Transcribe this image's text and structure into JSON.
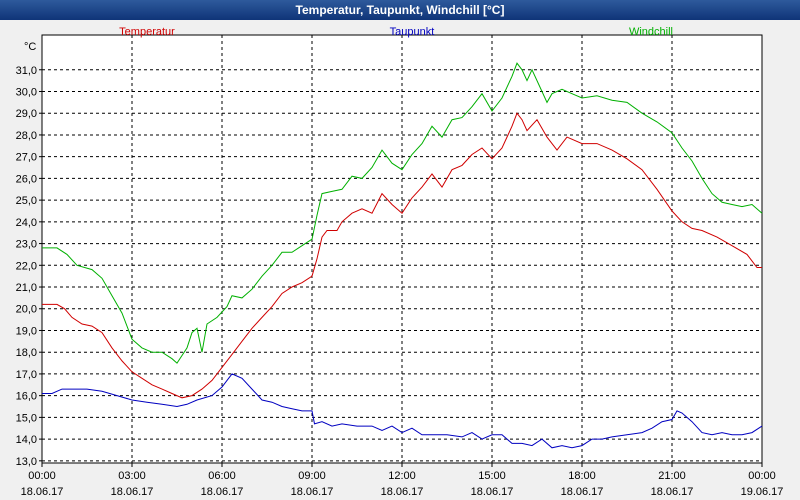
{
  "window": {
    "title": "Temperatur, Taupunkt, Windchill [°C]"
  },
  "colors": {
    "background": "#f0f0f0",
    "plot_background": "#ffffff",
    "grid": "#000000",
    "temperatur": "#d00000",
    "taupunkt": "#0000c0",
    "windchill": "#00b000"
  },
  "chart_data": {
    "type": "line",
    "title": "Temperatur, Taupunkt, Windchill [°C]",
    "ylabel": "°C",
    "xlabel": "",
    "ylim": [
      12.9,
      32.6
    ],
    "xlim": [
      "18.06.17 00:00",
      "19.06.17 00:00"
    ],
    "grid": true,
    "legend_placement": "top",
    "yticks": [
      "13,0",
      "14,0",
      "15,0",
      "16,0",
      "17,0",
      "18,0",
      "19,0",
      "20,0",
      "21,0",
      "22,0",
      "23,0",
      "24,0",
      "25,0",
      "26,0",
      "27,0",
      "28,0",
      "29,0",
      "30,0",
      "31,0"
    ],
    "ytick_values": [
      13,
      14,
      15,
      16,
      17,
      18,
      19,
      20,
      21,
      22,
      23,
      24,
      25,
      26,
      27,
      28,
      29,
      30,
      31
    ],
    "xticks": [
      {
        "time": "00:00",
        "date": "18.06.17",
        "hours": 0
      },
      {
        "time": "03:00",
        "date": "18.06.17",
        "hours": 3
      },
      {
        "time": "06:00",
        "date": "18.06.17",
        "hours": 6
      },
      {
        "time": "09:00",
        "date": "18.06.17",
        "hours": 9
      },
      {
        "time": "12:00",
        "date": "18.06.17",
        "hours": 12
      },
      {
        "time": "15:00",
        "date": "18.06.17",
        "hours": 15
      },
      {
        "time": "18:00",
        "date": "18.06.17",
        "hours": 18
      },
      {
        "time": "21:00",
        "date": "18.06.17",
        "hours": 21
      },
      {
        "time": "00:00",
        "date": "19.06.17",
        "hours": 24
      }
    ],
    "series": [
      {
        "name": "Temperatur",
        "color": "#d00000",
        "points": [
          [
            "18.06.17 00:00",
            20.2
          ],
          [
            "18.06.17 00:30",
            20.2
          ],
          [
            "18.06.17 00:45",
            20.0
          ],
          [
            "18.06.17 01:00",
            19.6
          ],
          [
            "18.06.17 01:20",
            19.3
          ],
          [
            "18.06.17 01:40",
            19.2
          ],
          [
            "18.06.17 02:00",
            18.9
          ],
          [
            "18.06.17 02:20",
            18.2
          ],
          [
            "18.06.17 02:40",
            17.6
          ],
          [
            "18.06.17 03:00",
            17.1
          ],
          [
            "18.06.17 03:20",
            16.8
          ],
          [
            "18.06.17 03:40",
            16.5
          ],
          [
            "18.06.17 04:00",
            16.3
          ],
          [
            "18.06.17 04:20",
            16.1
          ],
          [
            "18.06.17 04:40",
            15.9
          ],
          [
            "18.06.17 05:00",
            16.0
          ],
          [
            "18.06.17 05:20",
            16.3
          ],
          [
            "18.06.17 05:40",
            16.7
          ],
          [
            "18.06.17 06:00",
            17.3
          ],
          [
            "18.06.17 06:20",
            17.9
          ],
          [
            "18.06.17 06:40",
            18.5
          ],
          [
            "18.06.17 07:00",
            19.1
          ],
          [
            "18.06.17 07:20",
            19.6
          ],
          [
            "18.06.17 07:40",
            20.1
          ],
          [
            "18.06.17 08:00",
            20.7
          ],
          [
            "18.06.17 08:20",
            21.0
          ],
          [
            "18.06.17 08:40",
            21.2
          ],
          [
            "18.06.17 09:00",
            21.5
          ],
          [
            "18.06.17 09:10",
            22.3
          ],
          [
            "18.06.17 09:20",
            23.3
          ],
          [
            "18.06.17 09:30",
            23.6
          ],
          [
            "18.06.17 09:50",
            23.6
          ],
          [
            "18.06.17 10:00",
            24.0
          ],
          [
            "18.06.17 10:20",
            24.4
          ],
          [
            "18.06.17 10:40",
            24.6
          ],
          [
            "18.06.17 11:00",
            24.4
          ],
          [
            "18.06.17 11:20",
            25.3
          ],
          [
            "18.06.17 11:40",
            24.8
          ],
          [
            "18.06.17 12:00",
            24.4
          ],
          [
            "18.06.17 12:20",
            25.1
          ],
          [
            "18.06.17 12:40",
            25.6
          ],
          [
            "18.06.17 13:00",
            26.2
          ],
          [
            "18.06.17 13:20",
            25.6
          ],
          [
            "18.06.17 13:40",
            26.4
          ],
          [
            "18.06.17 14:00",
            26.6
          ],
          [
            "18.06.17 14:20",
            27.1
          ],
          [
            "18.06.17 14:40",
            27.4
          ],
          [
            "18.06.17 15:00",
            26.9
          ],
          [
            "18.06.17 15:20",
            27.4
          ],
          [
            "18.06.17 15:40",
            28.4
          ],
          [
            "18.06.17 15:50",
            29.0
          ],
          [
            "18.06.17 16:00",
            28.7
          ],
          [
            "18.06.17 16:10",
            28.2
          ],
          [
            "18.06.17 16:30",
            28.7
          ],
          [
            "18.06.17 16:50",
            27.9
          ],
          [
            "18.06.17 17:10",
            27.3
          ],
          [
            "18.06.17 17:30",
            27.9
          ],
          [
            "18.06.17 18:00",
            27.6
          ],
          [
            "18.06.17 18:30",
            27.6
          ],
          [
            "18.06.17 19:00",
            27.3
          ],
          [
            "18.06.17 19:30",
            26.9
          ],
          [
            "18.06.17 20:00",
            26.4
          ],
          [
            "18.06.17 20:30",
            25.5
          ],
          [
            "18.06.17 21:00",
            24.5
          ],
          [
            "18.06.17 21:20",
            24.0
          ],
          [
            "18.06.17 21:40",
            23.7
          ],
          [
            "18.06.17 22:00",
            23.6
          ],
          [
            "18.06.17 22:30",
            23.3
          ],
          [
            "18.06.17 23:00",
            22.9
          ],
          [
            "18.06.17 23:30",
            22.5
          ],
          [
            "18.06.17 23:50",
            21.9
          ],
          [
            "19.06.17 00:00",
            21.9
          ]
        ]
      },
      {
        "name": "Taupunkt",
        "color": "#0000c0",
        "points": [
          [
            "18.06.17 00:00",
            16.1
          ],
          [
            "18.06.17 00:20",
            16.1
          ],
          [
            "18.06.17 00:40",
            16.3
          ],
          [
            "18.06.17 01:00",
            16.3
          ],
          [
            "18.06.17 01:30",
            16.3
          ],
          [
            "18.06.17 02:00",
            16.2
          ],
          [
            "18.06.17 02:30",
            16.0
          ],
          [
            "18.06.17 03:00",
            15.8
          ],
          [
            "18.06.17 03:30",
            15.7
          ],
          [
            "18.06.17 04:00",
            15.6
          ],
          [
            "18.06.17 04:30",
            15.5
          ],
          [
            "18.06.17 04:50",
            15.6
          ],
          [
            "18.06.17 05:10",
            15.8
          ],
          [
            "18.06.17 05:40",
            16.0
          ],
          [
            "18.06.17 06:00",
            16.4
          ],
          [
            "18.06.17 06:20",
            17.0
          ],
          [
            "18.06.17 06:40",
            16.8
          ],
          [
            "18.06.17 07:00",
            16.3
          ],
          [
            "18.06.17 07:20",
            15.8
          ],
          [
            "18.06.17 07:40",
            15.7
          ],
          [
            "18.06.17 08:00",
            15.5
          ],
          [
            "18.06.17 08:20",
            15.4
          ],
          [
            "18.06.17 08:40",
            15.3
          ],
          [
            "18.06.17 09:00",
            15.3
          ],
          [
            "18.06.17 09:05",
            14.7
          ],
          [
            "18.06.17 09:20",
            14.8
          ],
          [
            "18.06.17 09:40",
            14.6
          ],
          [
            "18.06.17 10:00",
            14.7
          ],
          [
            "18.06.17 10:30",
            14.6
          ],
          [
            "18.06.17 11:00",
            14.6
          ],
          [
            "18.06.17 11:20",
            14.4
          ],
          [
            "18.06.17 11:40",
            14.6
          ],
          [
            "18.06.17 12:00",
            14.3
          ],
          [
            "18.06.17 12:20",
            14.5
          ],
          [
            "18.06.17 12:40",
            14.2
          ],
          [
            "18.06.17 13:00",
            14.2
          ],
          [
            "18.06.17 13:30",
            14.2
          ],
          [
            "18.06.17 14:00",
            14.1
          ],
          [
            "18.06.17 14:20",
            14.3
          ],
          [
            "18.06.17 14:40",
            14.0
          ],
          [
            "18.06.17 15:00",
            14.2
          ],
          [
            "18.06.17 15:20",
            14.2
          ],
          [
            "18.06.17 15:40",
            13.8
          ],
          [
            "18.06.17 16:00",
            13.8
          ],
          [
            "18.06.17 16:20",
            13.7
          ],
          [
            "18.06.17 16:40",
            14.0
          ],
          [
            "18.06.17 17:00",
            13.6
          ],
          [
            "18.06.17 17:20",
            13.7
          ],
          [
            "18.06.17 17:40",
            13.6
          ],
          [
            "18.06.17 18:00",
            13.7
          ],
          [
            "18.06.17 18:20",
            14.0
          ],
          [
            "18.06.17 18:40",
            14.0
          ],
          [
            "18.06.17 19:00",
            14.1
          ],
          [
            "18.06.17 19:30",
            14.2
          ],
          [
            "18.06.17 20:00",
            14.3
          ],
          [
            "18.06.17 20:20",
            14.5
          ],
          [
            "18.06.17 20:40",
            14.8
          ],
          [
            "18.06.17 21:00",
            14.9
          ],
          [
            "18.06.17 21:10",
            15.3
          ],
          [
            "18.06.17 21:20",
            15.2
          ],
          [
            "18.06.17 21:40",
            14.8
          ],
          [
            "18.06.17 22:00",
            14.3
          ],
          [
            "18.06.17 22:20",
            14.2
          ],
          [
            "18.06.17 22:40",
            14.3
          ],
          [
            "18.06.17 23:00",
            14.2
          ],
          [
            "18.06.17 23:20",
            14.2
          ],
          [
            "18.06.17 23:40",
            14.3
          ],
          [
            "19.06.17 00:00",
            14.6
          ]
        ]
      },
      {
        "name": "Windchill",
        "color": "#00b000",
        "points": [
          [
            "18.06.17 00:00",
            22.8
          ],
          [
            "18.06.17 00:30",
            22.8
          ],
          [
            "18.06.17 00:50",
            22.5
          ],
          [
            "18.06.17 01:10",
            22.0
          ],
          [
            "18.06.17 01:40",
            21.8
          ],
          [
            "18.06.17 02:00",
            21.4
          ],
          [
            "18.06.17 02:20",
            20.6
          ],
          [
            "18.06.17 02:40",
            19.8
          ],
          [
            "18.06.17 03:00",
            18.6
          ],
          [
            "18.06.17 03:20",
            18.2
          ],
          [
            "18.06.17 03:40",
            18.0
          ],
          [
            "18.06.17 04:00",
            18.0
          ],
          [
            "18.06.17 04:20",
            17.7
          ],
          [
            "18.06.17 04:30",
            17.5
          ],
          [
            "18.06.17 04:50",
            18.2
          ],
          [
            "18.06.17 05:00",
            18.9
          ],
          [
            "18.06.17 05:10",
            19.1
          ],
          [
            "18.06.17 05:20",
            18.0
          ],
          [
            "18.06.17 05:30",
            19.3
          ],
          [
            "18.06.17 05:50",
            19.6
          ],
          [
            "18.06.17 06:10",
            20.1
          ],
          [
            "18.06.17 06:20",
            20.6
          ],
          [
            "18.06.17 06:40",
            20.5
          ],
          [
            "18.06.17 07:00",
            20.9
          ],
          [
            "18.06.17 07:20",
            21.5
          ],
          [
            "18.06.17 07:40",
            22.0
          ],
          [
            "18.06.17 08:00",
            22.6
          ],
          [
            "18.06.17 08:20",
            22.6
          ],
          [
            "18.06.17 08:40",
            22.9
          ],
          [
            "18.06.17 09:00",
            23.2
          ],
          [
            "18.06.17 09:10",
            24.3
          ],
          [
            "18.06.17 09:20",
            25.3
          ],
          [
            "18.06.17 09:40",
            25.4
          ],
          [
            "18.06.17 10:00",
            25.5
          ],
          [
            "18.06.17 10:20",
            26.1
          ],
          [
            "18.06.17 10:40",
            26.0
          ],
          [
            "18.06.17 11:00",
            26.5
          ],
          [
            "18.06.17 11:20",
            27.3
          ],
          [
            "18.06.17 11:40",
            26.7
          ],
          [
            "18.06.17 12:00",
            26.4
          ],
          [
            "18.06.17 12:20",
            27.1
          ],
          [
            "18.06.17 12:40",
            27.6
          ],
          [
            "18.06.17 13:00",
            28.4
          ],
          [
            "18.06.17 13:20",
            27.9
          ],
          [
            "18.06.17 13:40",
            28.7
          ],
          [
            "18.06.17 14:00",
            28.8
          ],
          [
            "18.06.17 14:20",
            29.3
          ],
          [
            "18.06.17 14:40",
            29.9
          ],
          [
            "18.06.17 15:00",
            29.1
          ],
          [
            "18.06.17 15:20",
            29.7
          ],
          [
            "18.06.17 15:40",
            30.7
          ],
          [
            "18.06.17 15:50",
            31.3
          ],
          [
            "18.06.17 16:00",
            31.0
          ],
          [
            "18.06.17 16:10",
            30.5
          ],
          [
            "18.06.17 16:20",
            31.0
          ],
          [
            "18.06.17 16:40",
            30.0
          ],
          [
            "18.06.17 16:50",
            29.5
          ],
          [
            "18.06.17 17:00",
            29.9
          ],
          [
            "18.06.17 17:20",
            30.1
          ],
          [
            "18.06.17 17:40",
            29.9
          ],
          [
            "18.06.17 18:00",
            29.7
          ],
          [
            "18.06.17 18:30",
            29.8
          ],
          [
            "18.06.17 19:00",
            29.6
          ],
          [
            "18.06.17 19:30",
            29.5
          ],
          [
            "18.06.17 20:00",
            29.0
          ],
          [
            "18.06.17 20:30",
            28.6
          ],
          [
            "18.06.17 21:00",
            28.1
          ],
          [
            "18.06.17 21:20",
            27.4
          ],
          [
            "18.06.17 21:40",
            26.8
          ],
          [
            "18.06.17 22:00",
            26.0
          ],
          [
            "18.06.17 22:20",
            25.3
          ],
          [
            "18.06.17 22:40",
            24.9
          ],
          [
            "18.06.17 23:00",
            24.8
          ],
          [
            "18.06.17 23:20",
            24.7
          ],
          [
            "18.06.17 23:40",
            24.8
          ],
          [
            "19.06.17 00:00",
            24.4
          ]
        ]
      }
    ]
  }
}
